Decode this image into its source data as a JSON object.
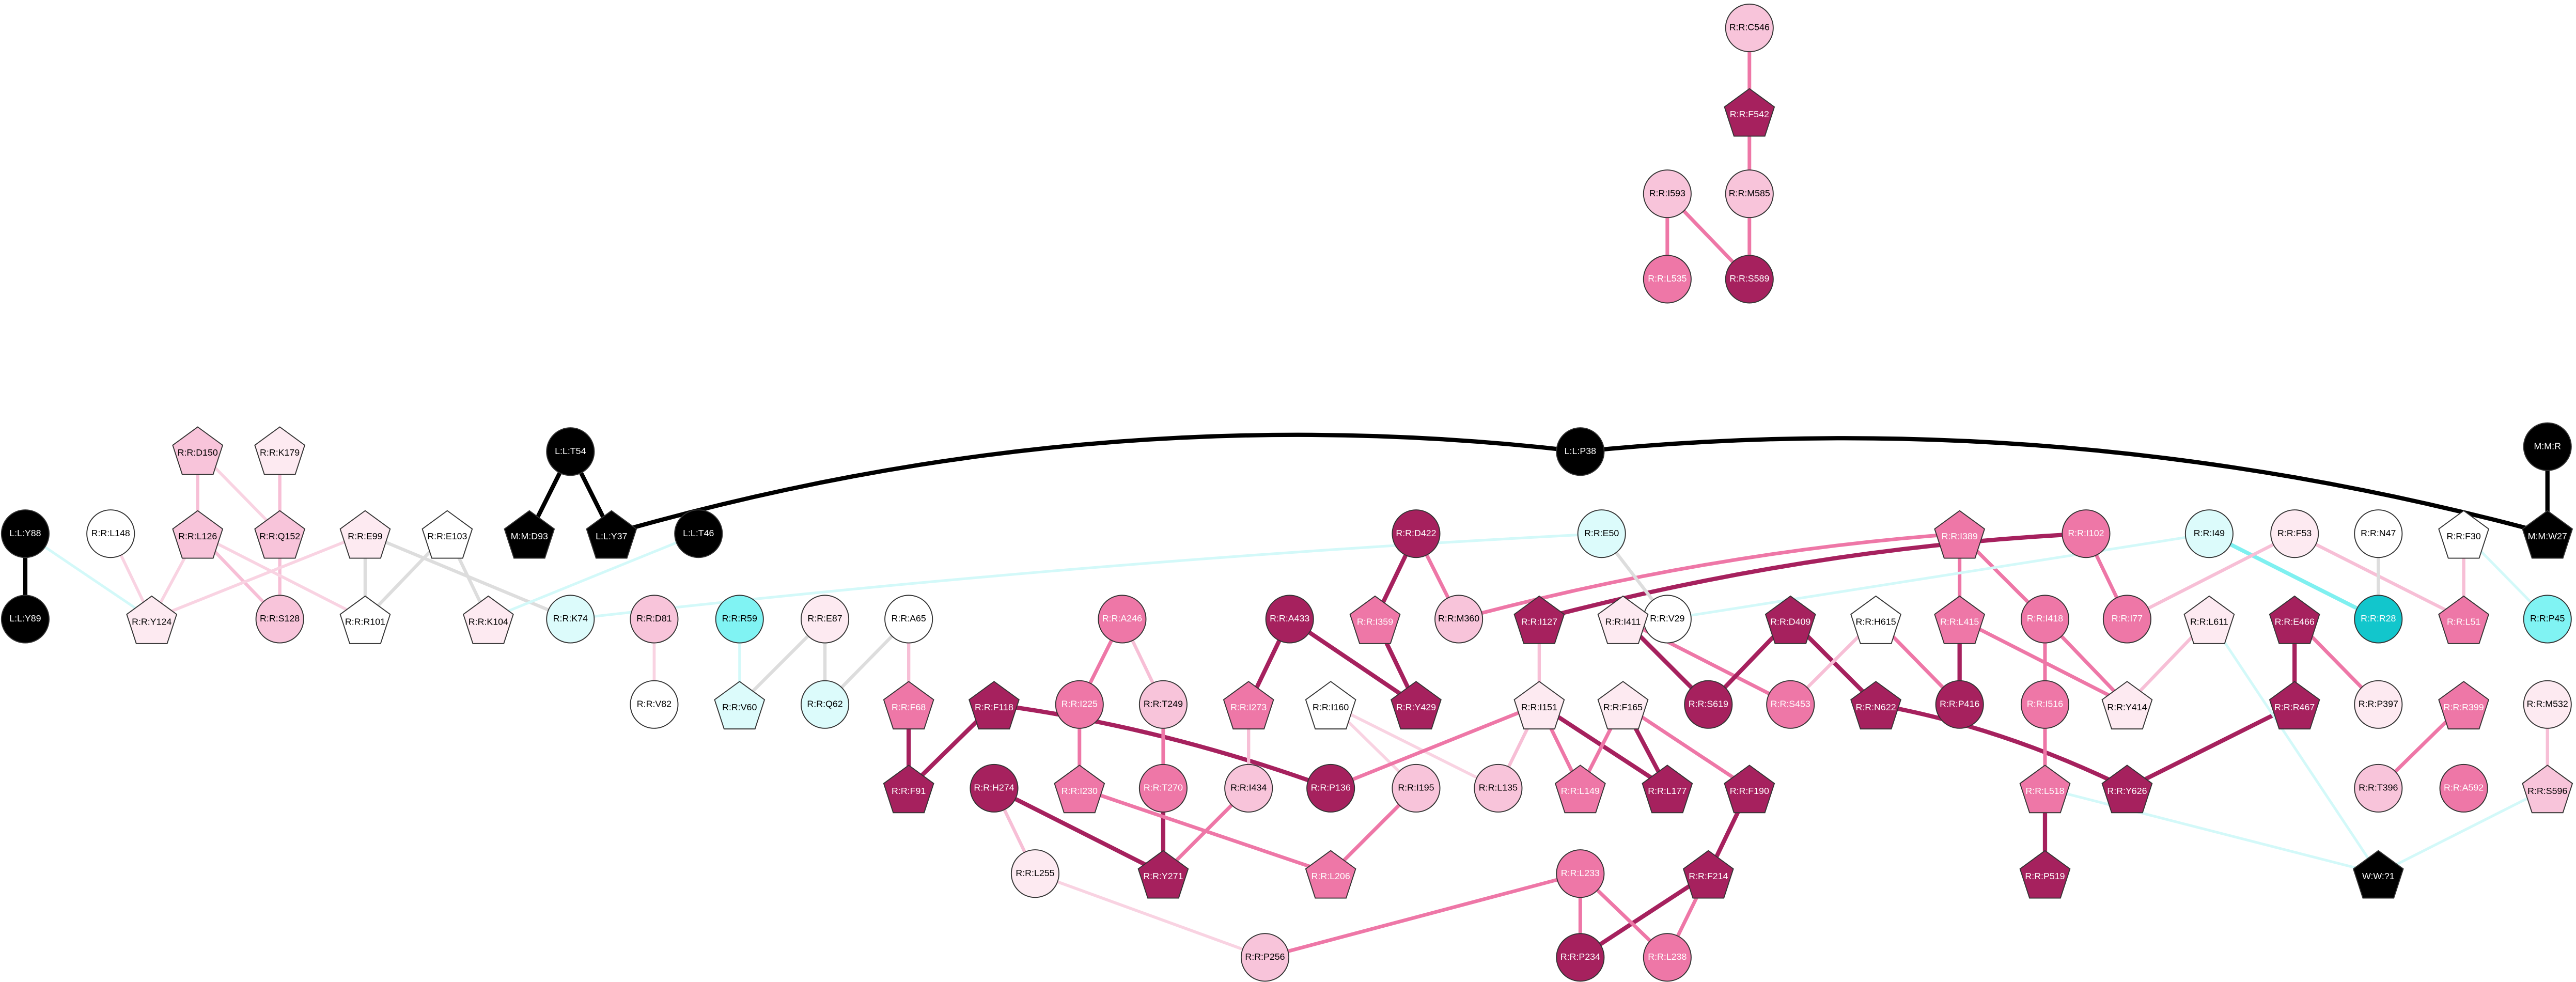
{
  "nodes": [
    {
      "label": "R:R:C546"
    },
    {
      "label": "R:R:F542"
    },
    {
      "label": "R:R:I593"
    },
    {
      "label": "R:R:M585"
    },
    {
      "label": "R:R:L535"
    },
    {
      "label": "R:R:S589"
    },
    {
      "label": "L:L:T54"
    },
    {
      "label": "M:M:D93"
    },
    {
      "label": "L:L:Y37"
    },
    {
      "label": "L:L:P38"
    },
    {
      "label": "M:M:R"
    },
    {
      "label": "M:M:W27"
    },
    {
      "label": "L:L:Y88"
    },
    {
      "label": "L:L:Y89"
    },
    {
      "label": "L:L:T46"
    },
    {
      "label": "R:R:D150"
    },
    {
      "label": "R:R:K179"
    },
    {
      "label": "R:R:L126"
    },
    {
      "label": "R:R:Q152"
    },
    {
      "label": "R:R:L148"
    },
    {
      "label": "R:R:E99"
    },
    {
      "label": "R:R:E103"
    },
    {
      "label": "R:R:Y124"
    },
    {
      "label": "R:R:S128"
    },
    {
      "label": "R:R:R101"
    },
    {
      "label": "R:R:K104"
    },
    {
      "label": "R:R:K74"
    },
    {
      "label": "R:R:D81"
    },
    {
      "label": "R:R:V82"
    },
    {
      "label": "R:R:R59"
    },
    {
      "label": "R:R:V60"
    },
    {
      "label": "R:R:E87"
    },
    {
      "label": "R:R:Q62"
    },
    {
      "label": "R:R:A65"
    },
    {
      "label": "R:R:F68"
    },
    {
      "label": "R:R:F91"
    },
    {
      "label": "R:R:F118"
    },
    {
      "label": "R:R:A246"
    },
    {
      "label": "R:R:I225"
    },
    {
      "label": "R:R:T249"
    },
    {
      "label": "R:R:I230"
    },
    {
      "label": "R:R:T270"
    },
    {
      "label": "R:R:H274"
    },
    {
      "label": "R:R:L255"
    },
    {
      "label": "R:R:Y271"
    },
    {
      "label": "R:R:A433"
    },
    {
      "label": "R:R:I273"
    },
    {
      "label": "R:R:I434"
    },
    {
      "label": "R:R:P136"
    },
    {
      "label": "R:R:I160"
    },
    {
      "label": "R:R:I195"
    },
    {
      "label": "R:R:L206"
    },
    {
      "label": "R:R:P256"
    },
    {
      "label": "R:R:D422"
    },
    {
      "label": "R:R:I359"
    },
    {
      "label": "R:R:M360"
    },
    {
      "label": "R:R:Y429"
    },
    {
      "label": "R:R:E50"
    },
    {
      "label": "R:R:V29"
    },
    {
      "label": "R:R:I127"
    },
    {
      "label": "R:R:I151"
    },
    {
      "label": "R:R:L135"
    },
    {
      "label": "R:R:F165"
    },
    {
      "label": "R:R:L149"
    },
    {
      "label": "R:R:L177"
    },
    {
      "label": "R:R:F190"
    },
    {
      "label": "R:R:F214"
    },
    {
      "label": "R:R:L233"
    },
    {
      "label": "R:R:P234"
    },
    {
      "label": "R:R:L238"
    },
    {
      "label": "R:R:I411"
    },
    {
      "label": "R:R:S619"
    },
    {
      "label": "R:R:S453"
    },
    {
      "label": "R:R:D409"
    },
    {
      "label": "R:R:N622"
    },
    {
      "label": "R:R:H615"
    },
    {
      "label": "R:R:P416"
    },
    {
      "label": "R:R:I389"
    },
    {
      "label": "R:R:L415"
    },
    {
      "label": "R:R:I102"
    },
    {
      "label": "R:R:I77"
    },
    {
      "label": "R:R:I418"
    },
    {
      "label": "R:R:I516"
    },
    {
      "label": "R:R:Y414"
    },
    {
      "label": "R:R:L518"
    },
    {
      "label": "R:R:P519"
    },
    {
      "label": "R:R:Y626"
    },
    {
      "label": "R:R:I49"
    },
    {
      "label": "R:R:F53"
    },
    {
      "label": "R:R:N47"
    },
    {
      "label": "R:R:F30"
    },
    {
      "label": "R:R:L611"
    },
    {
      "label": "R:R:R28"
    },
    {
      "label": "R:R:L51"
    },
    {
      "label": "R:R:P45"
    },
    {
      "label": "R:R:E466"
    },
    {
      "label": "R:R:R467"
    },
    {
      "label": "R:R:P397"
    },
    {
      "label": "R:R:R399"
    },
    {
      "label": "R:R:T396"
    },
    {
      "label": "R:R:A592"
    },
    {
      "label": "R:R:M532"
    },
    {
      "label": "R:R:S596"
    },
    {
      "label": "W:W:?1"
    }
  ]
}
